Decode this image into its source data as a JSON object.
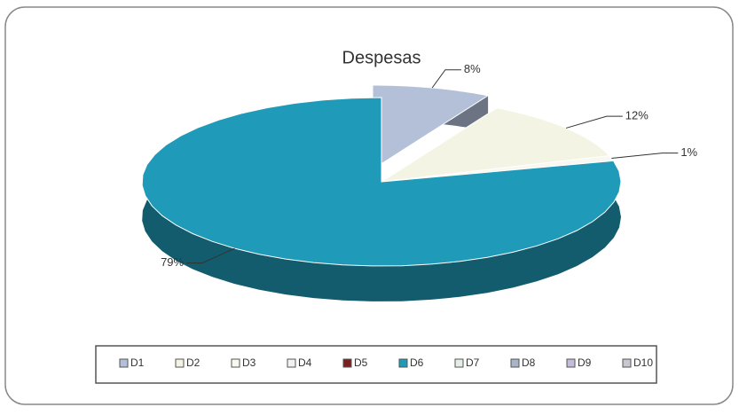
{
  "chart_data": {
    "type": "pie",
    "title": "Despesas",
    "categories": [
      "D1",
      "D2",
      "D3",
      "D4",
      "D5",
      "D6",
      "D7",
      "D8",
      "D9",
      "D10"
    ],
    "values": [
      8,
      12,
      1,
      0,
      0,
      79,
      0,
      0,
      0,
      0
    ],
    "value_labels": [
      "8%",
      "12%",
      "1%",
      null,
      null,
      "79%",
      null,
      null,
      null,
      null
    ],
    "colors": [
      "#b4c0d8",
      "#f4f4e4",
      "#f8f8f0",
      "#f2f2f2",
      "#7a2020",
      "#1f9ab8",
      "#e6ece6",
      "#a8b4c8",
      "#c4bcd8",
      "#c8c8d0"
    ],
    "legend": "bottom"
  }
}
